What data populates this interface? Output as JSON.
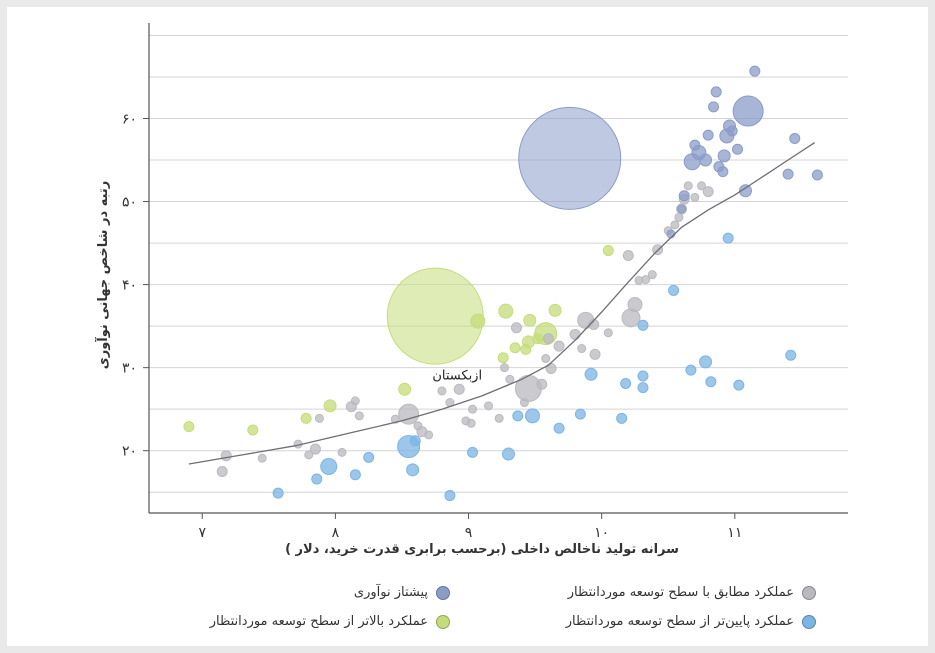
{
  "chart_data": {
    "type": "scatter",
    "xlabel": "سرانه تولید ناخالص داخلی (برحسب برابری قدرت خرید، دلار )",
    "ylabel": "رتبه در شاخص جهانی نوآوری",
    "xlim": [
      6.6,
      11.85
    ],
    "ylim": [
      12.5,
      71.5
    ],
    "x_ticks": [
      7,
      8,
      9,
      10,
      11
    ],
    "x_tick_labels": [
      "۷",
      "۸",
      "۹",
      "۱۰",
      "۱۱"
    ],
    "y_ticks": [
      20,
      30,
      40,
      50,
      60
    ],
    "y_tick_labels": [
      "۲۰",
      "۳۰",
      "۴۰",
      "۵۰",
      "۶۰"
    ],
    "grid": "horizontal",
    "legend_position": "bottom",
    "annotations": [
      {
        "text": "ازبکستان",
        "x": 8.93,
        "y": 27.4
      }
    ],
    "series": [
      {
        "key": "expected",
        "name": "عملکرد مطابق با سطح توسعه موردانتظار",
        "color": "#b9b9bf",
        "points": [
          [
            7.15,
            17.5,
            5
          ],
          [
            7.18,
            19.4,
            5
          ],
          [
            7.45,
            19.1,
            4
          ],
          [
            7.72,
            20.8,
            4
          ],
          [
            7.8,
            19.5,
            4
          ],
          [
            7.85,
            20.2,
            5
          ],
          [
            7.88,
            23.9,
            4
          ],
          [
            8.05,
            19.8,
            4
          ],
          [
            8.12,
            25.3,
            5
          ],
          [
            8.15,
            26,
            4
          ],
          [
            8.18,
            24.2,
            4
          ],
          [
            8.45,
            23.8,
            4
          ],
          [
            8.55,
            24.4,
            10
          ],
          [
            8.62,
            23,
            4
          ],
          [
            8.65,
            22.3,
            5
          ],
          [
            8.7,
            21.9,
            4
          ],
          [
            8.8,
            27.2,
            4
          ],
          [
            8.86,
            25.8,
            4
          ],
          [
            8.93,
            27.4,
            5
          ],
          [
            8.98,
            23.6,
            4
          ],
          [
            9.02,
            23.3,
            4
          ],
          [
            9.03,
            25,
            4
          ],
          [
            9.15,
            25.4,
            4
          ],
          [
            9.23,
            23.9,
            4
          ],
          [
            9.27,
            30,
            4
          ],
          [
            9.31,
            28.6,
            4
          ],
          [
            9.36,
            34.8,
            5
          ],
          [
            9.42,
            25.8,
            4
          ],
          [
            9.45,
            27.5,
            13
          ],
          [
            9.55,
            28,
            5
          ],
          [
            9.58,
            31.1,
            4
          ],
          [
            9.6,
            33.5,
            5
          ],
          [
            9.62,
            29.9,
            5
          ],
          [
            9.68,
            32.6,
            5
          ],
          [
            9.8,
            34,
            5
          ],
          [
            9.85,
            32.3,
            4
          ],
          [
            9.88,
            35.7,
            8
          ],
          [
            9.94,
            35.2,
            5
          ],
          [
            9.95,
            31.6,
            5
          ],
          [
            10.05,
            34.2,
            4
          ],
          [
            10.22,
            36,
            9
          ],
          [
            10.25,
            37.6,
            7
          ],
          [
            10.2,
            43.5,
            5
          ],
          [
            10.28,
            40.5,
            4
          ],
          [
            10.33,
            40.6,
            4
          ],
          [
            10.38,
            41.2,
            4
          ],
          [
            10.42,
            44.2,
            5
          ],
          [
            10.5,
            46.5,
            4
          ],
          [
            10.55,
            47.2,
            4
          ],
          [
            10.58,
            48.1,
            4
          ],
          [
            10.6,
            49.1,
            5
          ],
          [
            10.62,
            50.3,
            5
          ],
          [
            10.65,
            51.9,
            4
          ],
          [
            10.7,
            50.5,
            4
          ],
          [
            10.75,
            51.9,
            4
          ],
          [
            10.8,
            51.2,
            5
          ]
        ]
      },
      {
        "key": "below",
        "name": "عملکرد پایین‌تر از سطح توسعه موردانتظار",
        "color": "#7cb4e3",
        "points": [
          [
            7.57,
            14.9,
            5
          ],
          [
            7.86,
            16.6,
            5
          ],
          [
            7.95,
            18.1,
            8
          ],
          [
            8.15,
            17.1,
            5
          ],
          [
            8.25,
            19.2,
            5
          ],
          [
            8.55,
            20.5,
            11
          ],
          [
            8.58,
            17.7,
            6
          ],
          [
            8.6,
            21.2,
            5
          ],
          [
            8.86,
            14.6,
            5
          ],
          [
            9.03,
            19.8,
            5
          ],
          [
            9.3,
            19.6,
            6
          ],
          [
            9.37,
            24.2,
            5
          ],
          [
            9.48,
            24.2,
            7
          ],
          [
            9.68,
            22.7,
            5
          ],
          [
            9.84,
            24.4,
            5
          ],
          [
            9.92,
            29.2,
            6
          ],
          [
            10.15,
            23.9,
            5
          ],
          [
            10.18,
            28.1,
            5
          ],
          [
            10.31,
            27.6,
            5
          ],
          [
            10.31,
            29,
            5
          ],
          [
            10.31,
            35.1,
            5
          ],
          [
            10.54,
            39.3,
            5
          ],
          [
            10.67,
            29.7,
            5
          ],
          [
            10.78,
            30.7,
            6
          ],
          [
            10.82,
            28.3,
            5
          ],
          [
            10.95,
            45.6,
            5
          ],
          [
            11.03,
            27.9,
            5
          ],
          [
            11.42,
            31.5,
            5
          ]
        ]
      },
      {
        "key": "above",
        "name": "عملکرد بالاتر از سطح توسعه موردانتظار",
        "color": "#c5dc7a",
        "points": [
          [
            6.9,
            22.9,
            5
          ],
          [
            7.38,
            22.5,
            5
          ],
          [
            7.78,
            23.9,
            5
          ],
          [
            7.96,
            25.4,
            6
          ],
          [
            8.52,
            27.4,
            6
          ],
          [
            8.75,
            36.2,
            48
          ],
          [
            9.07,
            35.6,
            7
          ],
          [
            9.26,
            31.2,
            5
          ],
          [
            9.28,
            36.8,
            7
          ],
          [
            9.35,
            32.4,
            5
          ],
          [
            9.43,
            32.2,
            5
          ],
          [
            9.45,
            33.1,
            6
          ],
          [
            9.46,
            35.7,
            6
          ],
          [
            9.52,
            33.5,
            5
          ],
          [
            9.58,
            34.1,
            11
          ],
          [
            9.65,
            36.9,
            6
          ],
          [
            10.05,
            44.1,
            5
          ]
        ]
      },
      {
        "key": "leader",
        "name": "پیشتاز نوآوری",
        "color": "#8b9cc8",
        "points": [
          [
            9.76,
            55.2,
            51
          ],
          [
            10.52,
            46.1,
            4
          ],
          [
            10.6,
            49.1,
            4
          ],
          [
            10.62,
            50.7,
            5
          ],
          [
            10.68,
            54.8,
            8
          ],
          [
            10.73,
            55.9,
            7
          ],
          [
            10.78,
            55,
            6
          ],
          [
            10.8,
            58,
            5
          ],
          [
            10.84,
            61.4,
            5
          ],
          [
            10.88,
            54.2,
            5
          ],
          [
            10.91,
            53.6,
            5
          ],
          [
            10.92,
            55.5,
            6
          ],
          [
            10.94,
            57.9,
            7
          ],
          [
            10.96,
            59.1,
            6
          ],
          [
            10.98,
            58.5,
            5
          ],
          [
            11.02,
            56.3,
            5
          ],
          [
            11.08,
            51.3,
            6
          ],
          [
            11.1,
            60.9,
            15
          ],
          [
            11.15,
            65.7,
            5
          ],
          [
            11.4,
            53.3,
            5
          ],
          [
            11.45,
            57.6,
            5
          ],
          [
            11.62,
            53.2,
            5
          ],
          [
            10.7,
            56.8,
            5
          ],
          [
            10.86,
            63.2,
            5
          ]
        ]
      }
    ],
    "trend_line": {
      "x": [
        6.9,
        7.3,
        7.7,
        8.1,
        8.5,
        8.8,
        9.1,
        9.4,
        9.6,
        9.8,
        10.0,
        10.2,
        10.4,
        10.6,
        10.8,
        11.0,
        11.2,
        11.4,
        11.6
      ],
      "y": [
        18.4,
        19.5,
        20.6,
        22.1,
        23.6,
        25.0,
        26.6,
        28.6,
        30.3,
        33.3,
        36.7,
        40.3,
        43.8,
        46.9,
        49.0,
        50.8,
        52.9,
        55.0,
        57.1
      ]
    }
  },
  "legend_items": [
    {
      "key": "expected",
      "label": "عملکرد مطابق با سطح توسعه موردانتظار",
      "color": "#b9b9bf"
    },
    {
      "key": "leader",
      "label": "پیشتاز نوآوری",
      "color": "#8b9cc8"
    },
    {
      "key": "below",
      "label": "عملکرد پایین‌تر از سطح توسعه موردانتظار",
      "color": "#7cb4e3"
    },
    {
      "key": "above",
      "label": "عملکرد بالاتر از سطح توسعه موردانتظار",
      "color": "#c5dc7a"
    }
  ]
}
